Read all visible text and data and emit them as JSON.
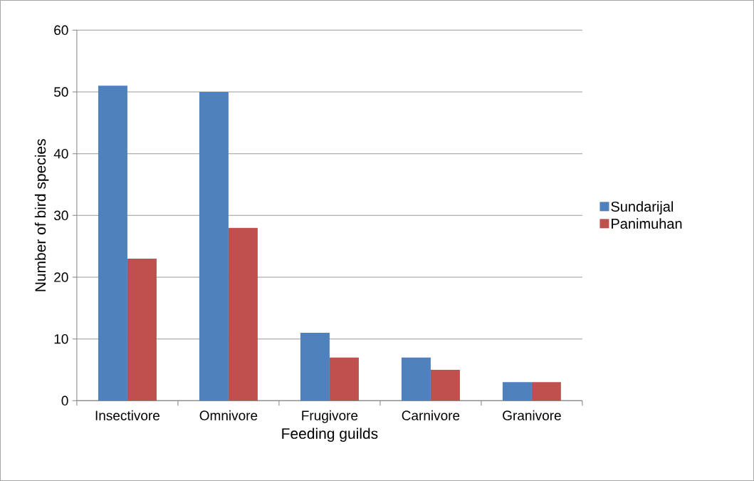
{
  "chart_data": {
    "type": "bar",
    "xlabel": "Feeding guilds",
    "ylabel": "Number of bird species",
    "categories": [
      "Insectivore",
      "Omnivore",
      "Frugivore",
      "Carnivore",
      "Granivore"
    ],
    "series": [
      {
        "name": "Sundarijal",
        "color": "#4f81bd",
        "values": [
          51,
          50,
          11,
          7,
          3
        ]
      },
      {
        "name": "Panimuhan",
        "color": "#c0504d",
        "values": [
          23,
          28,
          7,
          5,
          3
        ]
      }
    ],
    "ylim": [
      0,
      60
    ],
    "yticks": [
      0,
      10,
      20,
      30,
      40,
      50,
      60
    ],
    "grid": "y",
    "legend": "right"
  }
}
